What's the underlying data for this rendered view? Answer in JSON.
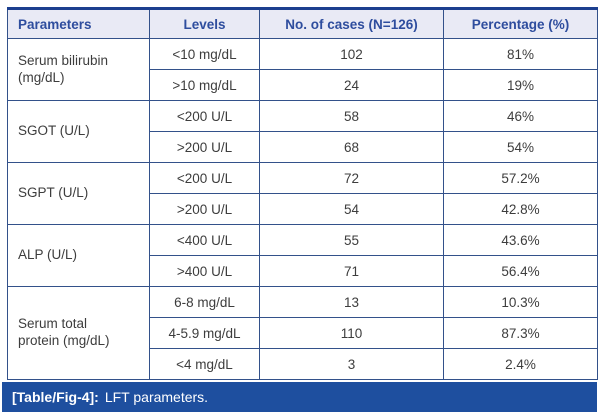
{
  "table": {
    "headers": [
      "Parameters",
      "Levels",
      "No. of cases (N=126)",
      "Percentage (%)"
    ],
    "groups": [
      {
        "parameter": "Serum bilirubin\n(mg/dL)",
        "rows": [
          {
            "level": "<10 mg/dL",
            "cases": "102",
            "percentage": "81%"
          },
          {
            "level": ">10 mg/dL",
            "cases": "24",
            "percentage": "19%"
          }
        ]
      },
      {
        "parameter": "SGOT (U/L)",
        "rows": [
          {
            "level": "<200 U/L",
            "cases": "58",
            "percentage": "46%"
          },
          {
            "level": ">200 U/L",
            "cases": "68",
            "percentage": "54%"
          }
        ]
      },
      {
        "parameter": "SGPT (U/L)",
        "rows": [
          {
            "level": "<200 U/L",
            "cases": "72",
            "percentage": "57.2%"
          },
          {
            "level": ">200 U/L",
            "cases": "54",
            "percentage": "42.8%"
          }
        ]
      },
      {
        "parameter": "ALP (U/L)",
        "rows": [
          {
            "level": "<400 U/L",
            "cases": "55",
            "percentage": "43.6%"
          },
          {
            "level": ">400 U/L",
            "cases": "71",
            "percentage": "56.4%"
          }
        ]
      },
      {
        "parameter": "Serum total\nprotein (mg/dL)",
        "rows": [
          {
            "level": "6-8 mg/dL",
            "cases": "13",
            "percentage": "10.3%"
          },
          {
            "level": "4-5.9 mg/dL",
            "cases": "110",
            "percentage": "87.3%"
          },
          {
            "level": "<4 mg/dL",
            "cases": "3",
            "percentage": "2.4%"
          }
        ]
      }
    ],
    "caption": {
      "label": "[Table/Fig-4]:",
      "text": "LFT parameters."
    }
  },
  "colors": {
    "header_bg": "#e9eaf5",
    "header_text": "#2e4d9e",
    "border": "#33518a",
    "top_border": "#1c3f8f",
    "caption_bg": "#1e4f9f",
    "caption_text": "#ffffff",
    "body_text": "#3d3d3d"
  }
}
